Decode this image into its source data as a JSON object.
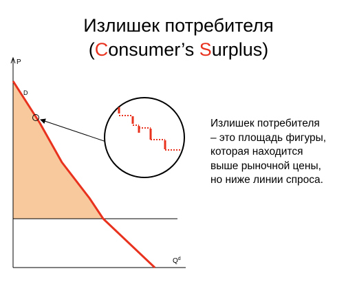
{
  "title": {
    "line1": "Излишек потребителя",
    "line2_open": "(",
    "line2_c": "C",
    "line2_mid": "onsumer’s ",
    "line2_s": "S",
    "line2_rest": "urplus)"
  },
  "axes": {
    "y_label": "P",
    "x_label": "Q",
    "x_label_sup": "d"
  },
  "curve": {
    "label": "D"
  },
  "explanation": {
    "lines": [
      "Излишек потребителя",
      "– это площадь фигуры,",
      "которая находится",
      "выше рыночной цены,",
      "но ниже линии спроса."
    ]
  },
  "colors": {
    "demand_line": "#e8321e",
    "surplus_fill": "#f9c99e",
    "axes": "#000000"
  }
}
